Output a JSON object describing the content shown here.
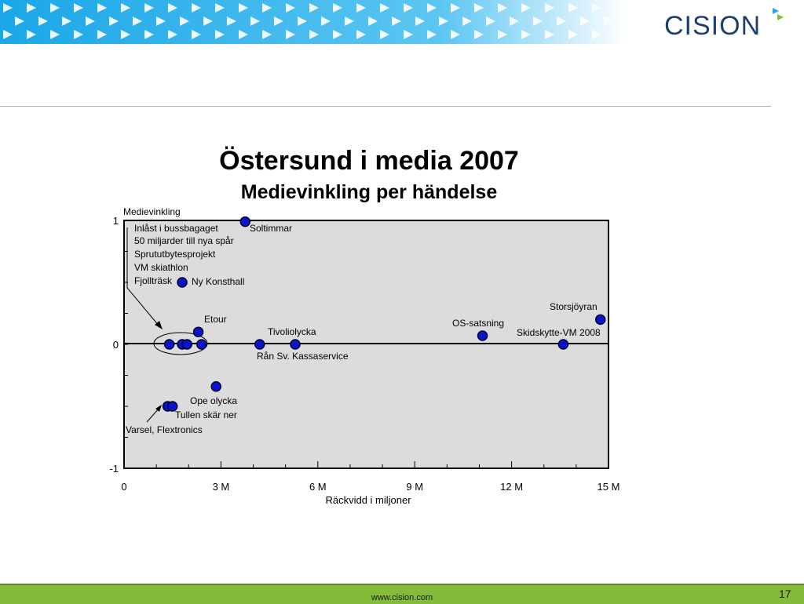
{
  "header": {
    "logo_text": "CISION"
  },
  "footer": {
    "url": "www.cision.com",
    "page_number": "17"
  },
  "colors": {
    "point_fill": "#0a14c8",
    "point_stroke": "#000033",
    "plot_bg": "#dcdcdc",
    "footer_bg": "#84bb3a",
    "banner": "#1aa6e8"
  },
  "chart_data": {
    "type": "scatter",
    "title": "Östersund i media 2007",
    "subtitle": "Medievinkling per händelse",
    "xlabel": "Räckvidd i miljoner",
    "ylabel": "Medievinkling",
    "xlim": [
      0,
      15
    ],
    "ylim": [
      -1,
      1
    ],
    "x_ticks": [
      {
        "value": 0,
        "label": "0"
      },
      {
        "value": 3,
        "label": "3 M"
      },
      {
        "value": 6,
        "label": "6 M"
      },
      {
        "value": 9,
        "label": "9 M"
      },
      {
        "value": 12,
        "label": "12 M"
      },
      {
        "value": 15,
        "label": "15 M"
      }
    ],
    "y_ticks": [
      {
        "value": 1,
        "label": "1"
      },
      {
        "value": 0,
        "label": "0"
      },
      {
        "value": -1,
        "label": "-1"
      }
    ],
    "points": [
      {
        "x": 3.75,
        "y": 0.99,
        "label": "Soltimmar"
      },
      {
        "x": 1.8,
        "y": 0.5,
        "label": "Ny Konsthall"
      },
      {
        "x": 2.3,
        "y": 0.1,
        "label": "Etour"
      },
      {
        "x": 1.4,
        "y": 0.0
      },
      {
        "x": 1.8,
        "y": 0.0
      },
      {
        "x": 1.95,
        "y": 0.0
      },
      {
        "x": 2.4,
        "y": 0.0
      },
      {
        "x": 4.2,
        "y": 0.0,
        "label": "Rån Sv. Kassaservice"
      },
      {
        "x": 5.3,
        "y": 0.0,
        "label": "Tivoliolycka"
      },
      {
        "x": 11.1,
        "y": 0.07,
        "label": "OS-satsning"
      },
      {
        "x": 13.6,
        "y": 0.0,
        "label": "Skidskytte-VM 2008"
      },
      {
        "x": 14.75,
        "y": 0.2,
        "label": "Storsjöyran"
      },
      {
        "x": 2.85,
        "y": -0.34,
        "label": "Ope olycka"
      },
      {
        "x": 1.35,
        "y": -0.5
      },
      {
        "x": 1.5,
        "y": -0.5
      }
    ],
    "annotations": {
      "group_zero": [
        "Inlåst i bussbagaget",
        "50 miljarder till nya spår",
        "Sprututbytesprojekt",
        "VM skiathlon",
        "Fjollträsk"
      ],
      "group_negative": [
        "Tullen skär ner",
        "Varsel, Flextronics"
      ]
    }
  }
}
